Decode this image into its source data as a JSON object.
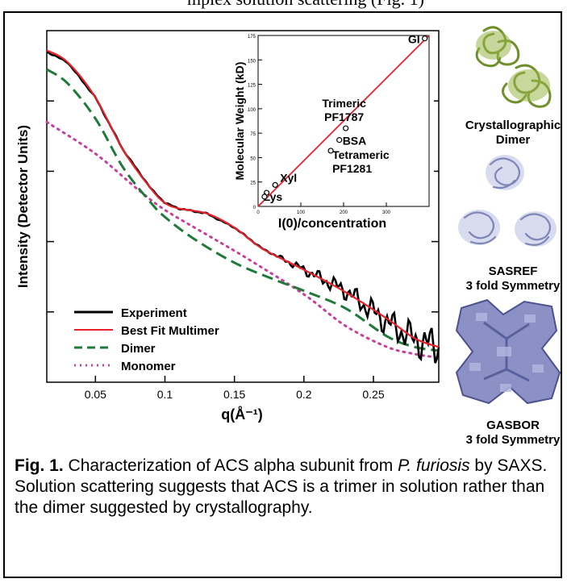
{
  "header_fragment": "mplex solution scattering (Fig. 1)",
  "main_chart": {
    "ylabel": "Intensity (Detector Units)",
    "xlabel": "q(Å⁻¹)",
    "x_ticks": [
      "0.05",
      "0.1",
      "0.15",
      "0.2",
      "0.25"
    ],
    "legend": [
      "Experiment",
      "Best Fit Multimer",
      "Dimer",
      "Monomer"
    ],
    "colors": {
      "experiment": "#000000",
      "fit": "#e8212b",
      "dimer": "#1f7a3a",
      "monomer": "#c8409a"
    }
  },
  "chart_data": [
    {
      "type": "line",
      "xlabel": "q(Å⁻¹)",
      "ylabel": "Intensity (Detector Units)",
      "xlim": [
        0.015,
        0.297
      ],
      "log_y": true,
      "ylim_log10": [
        0,
        5
      ],
      "x_ticks": [
        0.05,
        0.1,
        0.15,
        0.2,
        0.25
      ],
      "series": [
        {
          "name": "Experiment",
          "style": "solid",
          "x": [
            0.015,
            0.03,
            0.05,
            0.07,
            0.09,
            0.1,
            0.11,
            0.13,
            0.15,
            0.17,
            0.2,
            0.23,
            0.26,
            0.28,
            0.297
          ],
          "y": [
            4.7,
            4.55,
            4.05,
            3.3,
            2.75,
            2.55,
            2.47,
            2.4,
            2.2,
            1.9,
            1.6,
            1.3,
            0.85,
            0.6,
            0.5
          ]
        },
        {
          "name": "Best Fit Multimer",
          "style": "solid",
          "x": [
            0.015,
            0.03,
            0.05,
            0.07,
            0.09,
            0.1,
            0.11,
            0.13,
            0.15,
            0.17,
            0.2,
            0.23,
            0.26,
            0.28,
            0.297
          ],
          "y": [
            4.72,
            4.55,
            4.05,
            3.3,
            2.75,
            2.55,
            2.47,
            2.4,
            2.2,
            1.9,
            1.6,
            1.28,
            0.9,
            0.62,
            0.5
          ]
        },
        {
          "name": "Dimer",
          "style": "dashed",
          "x": [
            0.015,
            0.03,
            0.05,
            0.07,
            0.09,
            0.1,
            0.12,
            0.15,
            0.18,
            0.2,
            0.23,
            0.26,
            0.28,
            0.297
          ],
          "y": [
            4.45,
            4.25,
            3.75,
            3.05,
            2.55,
            2.35,
            2.05,
            1.7,
            1.45,
            1.3,
            1.05,
            0.65,
            0.5,
            0.45
          ]
        },
        {
          "name": "Monomer",
          "style": "dotted",
          "x": [
            0.015,
            0.05,
            0.08,
            0.1,
            0.13,
            0.16,
            0.2,
            0.23,
            0.26,
            0.28,
            0.297
          ],
          "y": [
            3.7,
            3.25,
            2.75,
            2.45,
            2.1,
            1.75,
            1.25,
            0.8,
            0.5,
            0.4,
            0.35
          ]
        }
      ]
    },
    {
      "type": "scatter",
      "xlabel": "I(0)/concentration",
      "ylabel": "Molecular Weight (kD)",
      "xlim": [
        0,
        400
      ],
      "ylim": [
        0,
        175
      ],
      "x_ticks": [
        0,
        100,
        200,
        300
      ],
      "y_ticks": [
        0,
        25,
        50,
        75,
        100,
        125,
        150,
        175
      ],
      "points": [
        {
          "label": "Lys",
          "x": 20,
          "y": 14
        },
        {
          "label": "Xyl",
          "x": 40,
          "y": 22
        },
        {
          "label": "",
          "x": 15,
          "y": 10
        },
        {
          "label": "Tetrameric\nPF1281",
          "x": 170,
          "y": 57
        },
        {
          "label": "BSA",
          "x": 190,
          "y": 68
        },
        {
          "label": "Trimeric\nPF1787",
          "x": 205,
          "y": 80
        },
        {
          "label": "GI",
          "x": 390,
          "y": 172
        }
      ],
      "fit_line": {
        "x": [
          0,
          400
        ],
        "y": [
          0,
          175
        ]
      }
    }
  ],
  "structures": [
    {
      "label_line1": "Crystallographic",
      "label_line2": "Dimer"
    },
    {
      "label_line1": "SASREF",
      "label_line2": "3 fold Symmetry"
    },
    {
      "label_line1": "GASBOR",
      "label_line2": "3 fold Symmetry"
    }
  ],
  "caption": {
    "fig_label": "Fig. 1.",
    "text_part1": " Characterization of ACS alpha subunit from ",
    "species": "P. furiosis",
    "text_part2": " by SAXS.  Solution scattering suggests that ACS is a trimer in solution rather than the dimer suggested by crystallography."
  }
}
